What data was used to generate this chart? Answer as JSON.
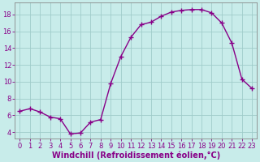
{
  "x": [
    0,
    1,
    2,
    3,
    4,
    5,
    6,
    7,
    8,
    9,
    10,
    11,
    12,
    13,
    14,
    15,
    16,
    17,
    18,
    19,
    20,
    21,
    22,
    23
  ],
  "y": [
    6.5,
    6.8,
    6.4,
    5.8,
    5.6,
    3.8,
    3.9,
    5.2,
    5.5,
    9.8,
    13.0,
    15.3,
    16.8,
    17.1,
    17.8,
    18.3,
    18.5,
    18.6,
    18.6,
    18.2,
    17.0,
    14.6,
    10.3,
    9.2
  ],
  "line_color": "#880088",
  "marker": "+",
  "marker_size": 4,
  "marker_linewidth": 1.0,
  "line_width": 1.0,
  "background_color": "#c8ecea",
  "grid_color": "#a0ccca",
  "xlabel": "Windchill (Refroidissement éolien,°C)",
  "xlabel_fontsize": 7,
  "yticks": [
    4,
    6,
    8,
    10,
    12,
    14,
    16,
    18
  ],
  "xticks": [
    0,
    1,
    2,
    3,
    4,
    5,
    6,
    7,
    8,
    9,
    10,
    11,
    12,
    13,
    14,
    15,
    16,
    17,
    18,
    19,
    20,
    21,
    22,
    23
  ],
  "ylim": [
    3.2,
    19.4
  ],
  "xlim": [
    -0.5,
    23.5
  ],
  "tick_color": "#880088",
  "tick_fontsize": 6,
  "spine_color": "#888888"
}
